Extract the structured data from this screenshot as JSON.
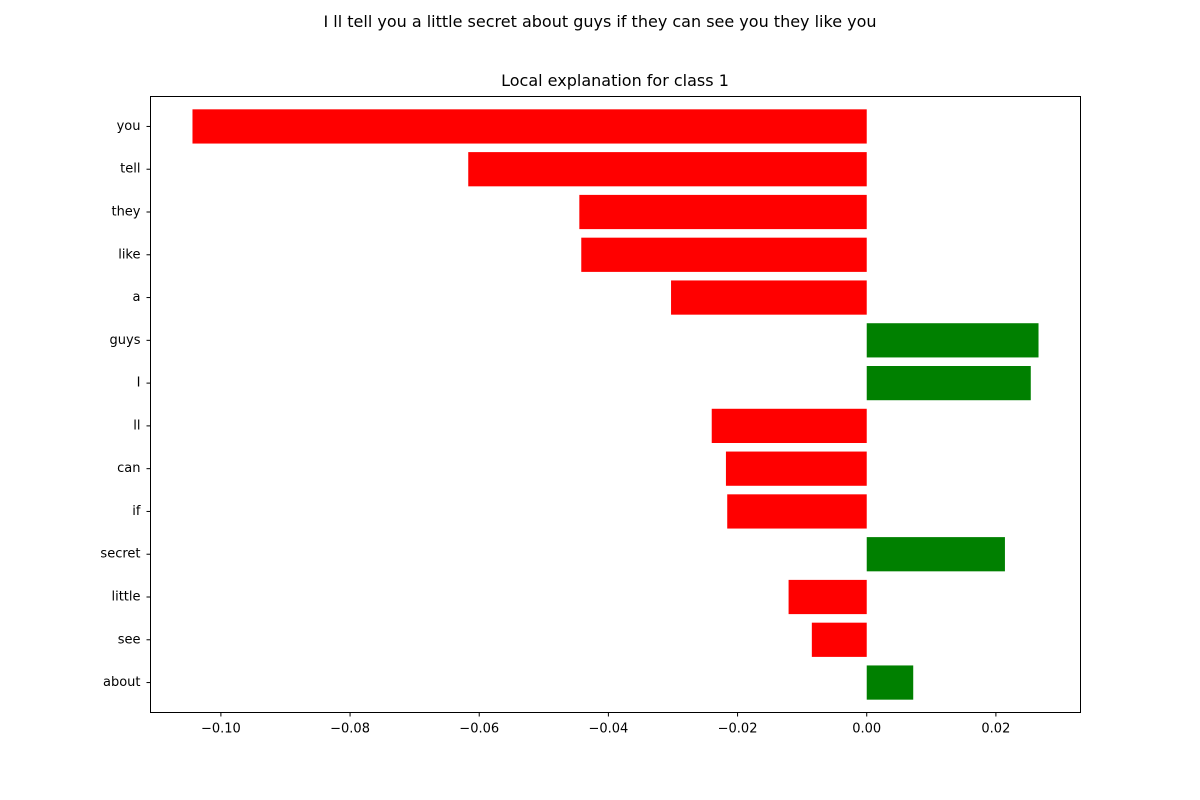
{
  "figure": {
    "title": "I ll tell you a little secret about guys if they can see you they like you"
  },
  "chart_data": {
    "type": "bar",
    "orientation": "horizontal",
    "title": "Local explanation for class 1",
    "xlabel": "",
    "ylabel": "",
    "categories": [
      "you",
      "tell",
      "they",
      "like",
      "a",
      "guys",
      "I",
      "ll",
      "can",
      "if",
      "secret",
      "little",
      "see",
      "about"
    ],
    "values": [
      -0.1044,
      -0.0617,
      -0.0445,
      -0.0442,
      -0.0303,
      0.0266,
      0.0254,
      -0.024,
      -0.0218,
      -0.0216,
      0.0214,
      -0.0121,
      -0.0085,
      0.0072
    ],
    "xlim": [
      -0.1109,
      0.0331
    ],
    "xticks": [
      -0.1,
      -0.08,
      -0.06,
      -0.04,
      -0.02,
      0.0,
      0.02
    ],
    "xtick_labels": [
      "−0.10",
      "−0.08",
      "−0.06",
      "−0.04",
      "−0.02",
      "0.00",
      "0.02"
    ],
    "grid": false,
    "colors": {
      "positive": "#008000",
      "negative": "#ff0000"
    }
  }
}
